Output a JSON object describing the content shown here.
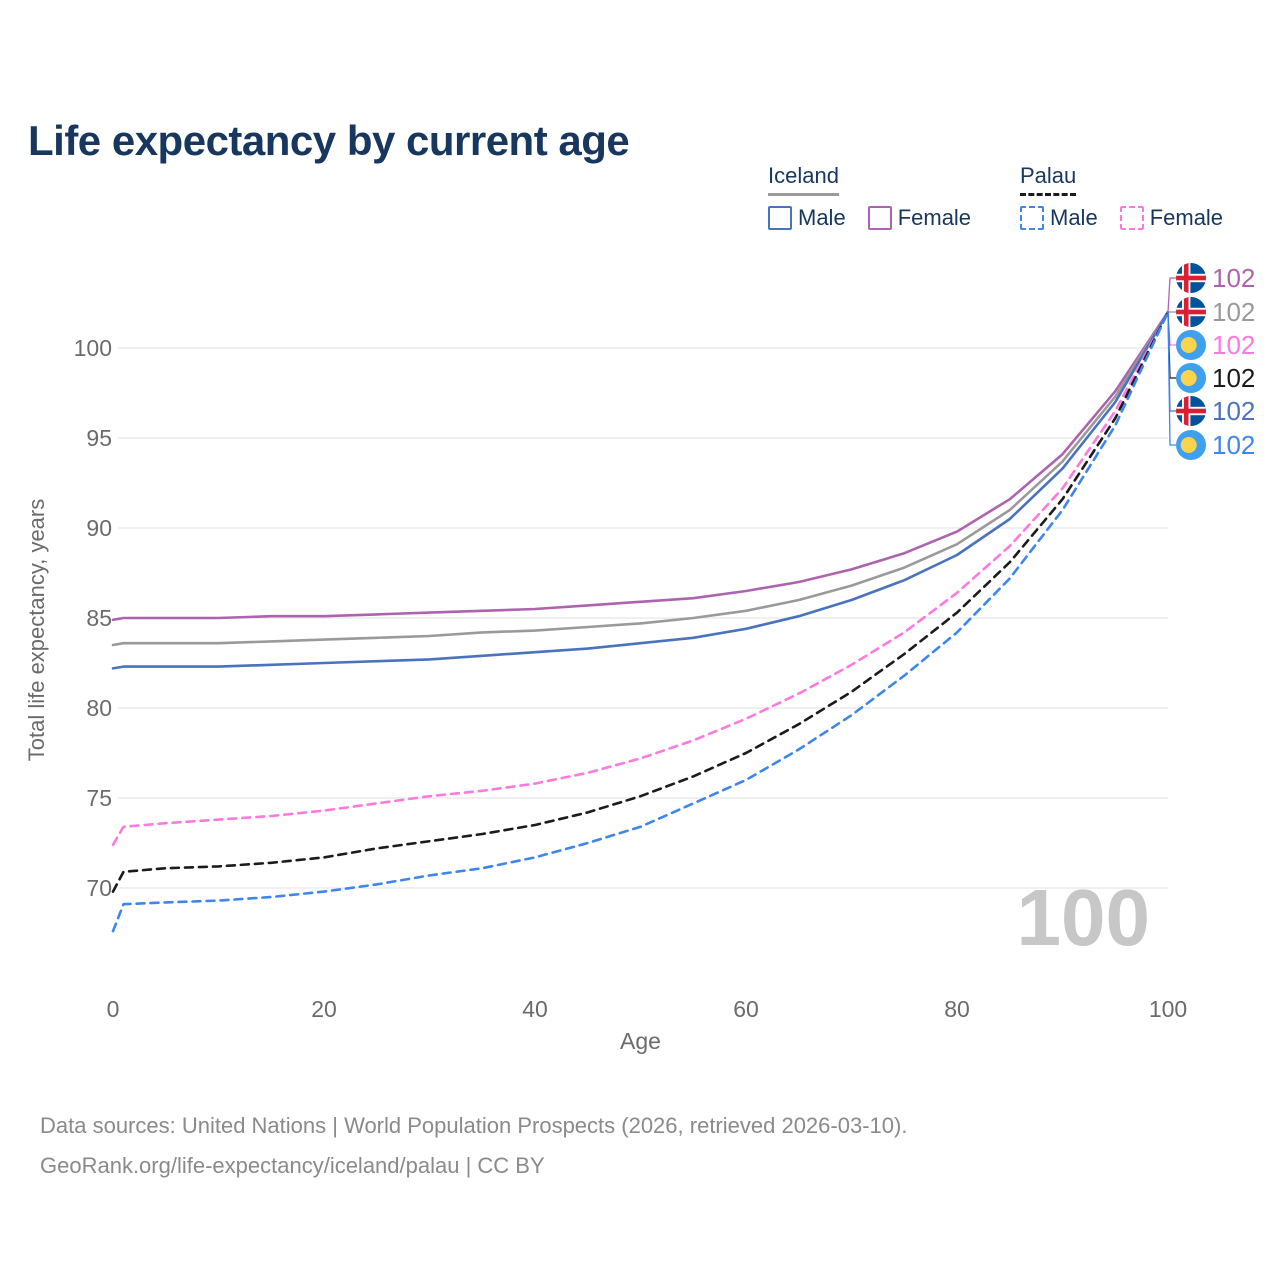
{
  "title": "Life expectancy by current age",
  "legend": {
    "groups": [
      {
        "label": "Iceland",
        "underline_color": "#9a9a9a",
        "underline_style": "solid",
        "items": [
          {
            "label": "Male",
            "color": "#4a73bd",
            "style": "solid"
          },
          {
            "label": "Female",
            "color": "#ae63ae",
            "style": "solid"
          }
        ]
      },
      {
        "label": "Palau",
        "underline_color": "#1b1b1b",
        "underline_style": "dashed",
        "items": [
          {
            "label": "Male",
            "color": "#3e86ee",
            "style": "dashed"
          },
          {
            "label": "Female",
            "color": "#fb7ae0",
            "style": "dashed"
          }
        ]
      }
    ]
  },
  "chart_data": {
    "type": "line",
    "title": "Life expectancy by current age",
    "xlabel": "Age",
    "ylabel": "Total life expectancy, years",
    "xlim": [
      0,
      100
    ],
    "ylim": [
      66,
      103
    ],
    "x_ticks": [
      0,
      20,
      40,
      60,
      80,
      100
    ],
    "y_ticks": [
      70,
      75,
      80,
      85,
      90,
      95,
      100
    ],
    "grid": "horizontal",
    "watermark": "100",
    "ages": [
      0,
      1,
      5,
      10,
      15,
      20,
      25,
      30,
      35,
      40,
      45,
      50,
      55,
      60,
      65,
      70,
      75,
      80,
      85,
      90,
      95,
      100
    ],
    "series": [
      {
        "id": "iceland-female",
        "name": "Iceland Female",
        "country": "Iceland",
        "sex": "female",
        "color": "#ae63ae",
        "dash": false,
        "values": [
          84.9,
          85.0,
          85.0,
          85.0,
          85.1,
          85.1,
          85.2,
          85.3,
          85.4,
          85.5,
          85.7,
          85.9,
          86.1,
          86.5,
          87.0,
          87.7,
          88.6,
          89.8,
          91.6,
          94.1,
          97.6,
          102
        ]
      },
      {
        "id": "iceland-total",
        "name": "Iceland",
        "country": "Iceland",
        "sex": "both",
        "color": "#9a9a9a",
        "dash": false,
        "values": [
          83.5,
          83.6,
          83.6,
          83.6,
          83.7,
          83.8,
          83.9,
          84.0,
          84.2,
          84.3,
          84.5,
          84.7,
          85.0,
          85.4,
          86.0,
          86.8,
          87.8,
          89.1,
          91.0,
          93.7,
          97.3,
          102
        ]
      },
      {
        "id": "iceland-male",
        "name": "Iceland Male",
        "country": "Iceland",
        "sex": "male",
        "color": "#4a73bd",
        "dash": false,
        "values": [
          82.2,
          82.3,
          82.3,
          82.3,
          82.4,
          82.5,
          82.6,
          82.7,
          82.9,
          83.1,
          83.3,
          83.6,
          83.9,
          84.4,
          85.1,
          86.0,
          87.1,
          88.5,
          90.5,
          93.3,
          97.0,
          102
        ]
      },
      {
        "id": "palau-female",
        "name": "Palau Female",
        "country": "Palau",
        "sex": "female",
        "color": "#fb7ae0",
        "dash": true,
        "values": [
          72.4,
          73.4,
          73.6,
          73.8,
          74.0,
          74.3,
          74.7,
          75.1,
          75.4,
          75.8,
          76.4,
          77.2,
          78.2,
          79.4,
          80.8,
          82.4,
          84.2,
          86.4,
          89.0,
          92.2,
          96.5,
          102
        ]
      },
      {
        "id": "palau-total",
        "name": "Palau",
        "country": "Palau",
        "sex": "both",
        "color": "#1b1b1b",
        "dash": true,
        "values": [
          69.8,
          70.9,
          71.1,
          71.2,
          71.4,
          71.7,
          72.2,
          72.6,
          73.0,
          73.5,
          74.2,
          75.1,
          76.2,
          77.5,
          79.1,
          80.9,
          83.0,
          85.3,
          88.1,
          91.6,
          96.1,
          102
        ]
      },
      {
        "id": "palau-male",
        "name": "Palau Male",
        "country": "Palau",
        "sex": "male",
        "color": "#3e86ee",
        "dash": true,
        "values": [
          67.6,
          69.1,
          69.2,
          69.3,
          69.5,
          69.8,
          70.2,
          70.7,
          71.1,
          71.7,
          72.5,
          73.4,
          74.7,
          76.0,
          77.7,
          79.6,
          81.8,
          84.2,
          87.2,
          91.0,
          95.7,
          102
        ]
      }
    ],
    "end_labels": [
      {
        "series": "Iceland Female",
        "country": "Iceland",
        "value": "102"
      },
      {
        "series": "Iceland",
        "country": "Iceland",
        "value": "102"
      },
      {
        "series": "Palau Female",
        "country": "Palau",
        "value": "102"
      },
      {
        "series": "Palau",
        "country": "Palau",
        "value": "102"
      },
      {
        "series": "Iceland Male",
        "country": "Iceland",
        "value": "102"
      },
      {
        "series": "Palau Male",
        "country": "Palau",
        "value": "102"
      }
    ]
  },
  "colors": {
    "title_navy": "#17375e",
    "axis_gray": "#6b6b6b",
    "gridline": "#ececec",
    "watermark_gray": "#c7c7c7",
    "footer_gray": "#8a8a8a",
    "iceland_flag_field": "#02529c",
    "iceland_flag_cross": "#dc1e35",
    "palau_flag_field": "#3fa0f0",
    "palau_flag_disc": "#fcd34d"
  },
  "footer": {
    "line1": "Data sources: United Nations | World Population Prospects (2026, retrieved 2026-03-10).",
    "line2": "GeoRank.org/life-expectancy/iceland/palau | CC BY"
  }
}
